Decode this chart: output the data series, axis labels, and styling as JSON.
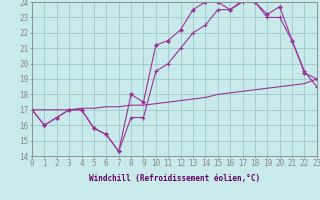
{
  "bg_color": "#c8eaea",
  "grid_color": "#a0c8c8",
  "line_color": "#993399",
  "x_min": 0,
  "x_max": 23,
  "y_min": 14,
  "y_max": 24,
  "xlabel": "Windchill (Refroidissement éolien,°C)",
  "line1_x": [
    0,
    1,
    2,
    3,
    4,
    5,
    6,
    7,
    8,
    9,
    10,
    11,
    12,
    13,
    14,
    15,
    16,
    17,
    18,
    19,
    20,
    21,
    22,
    23
  ],
  "line1_y": [
    17.0,
    16.0,
    16.5,
    17.0,
    17.0,
    15.8,
    15.4,
    14.3,
    18.0,
    17.5,
    21.2,
    21.5,
    22.2,
    23.5,
    24.0,
    24.0,
    23.5,
    24.1,
    24.0,
    23.2,
    23.7,
    21.5,
    19.4,
    19.0
  ],
  "line2_x": [
    0,
    1,
    2,
    3,
    4,
    5,
    6,
    7,
    8,
    9,
    10,
    11,
    12,
    13,
    14,
    15,
    16,
    17,
    18,
    19,
    20,
    21,
    22,
    23
  ],
  "line2_y": [
    17.0,
    16.0,
    16.5,
    17.0,
    17.0,
    15.8,
    15.4,
    14.3,
    16.5,
    16.5,
    19.5,
    20.0,
    21.0,
    22.0,
    22.5,
    23.5,
    23.5,
    24.0,
    24.0,
    23.0,
    23.0,
    21.5,
    19.5,
    18.5
  ],
  "line3_x": [
    0,
    1,
    2,
    3,
    4,
    5,
    6,
    7,
    8,
    9,
    10,
    11,
    12,
    13,
    14,
    15,
    16,
    17,
    18,
    19,
    20,
    21,
    22,
    23
  ],
  "line3_y": [
    17.0,
    17.0,
    17.0,
    17.0,
    17.1,
    17.1,
    17.2,
    17.2,
    17.3,
    17.3,
    17.4,
    17.5,
    17.6,
    17.7,
    17.8,
    18.0,
    18.1,
    18.2,
    18.3,
    18.4,
    18.5,
    18.6,
    18.7,
    19.0
  ],
  "yticks": [
    14,
    15,
    16,
    17,
    18,
    19,
    20,
    21,
    22,
    23,
    24
  ],
  "xticks": [
    0,
    1,
    2,
    3,
    4,
    5,
    6,
    7,
    8,
    9,
    10,
    11,
    12,
    13,
    14,
    15,
    16,
    17,
    18,
    19,
    20,
    21,
    22,
    23
  ],
  "tick_fontsize": 5.5,
  "label_fontsize": 5.5,
  "marker_size": 2.5,
  "line_width": 0.8
}
